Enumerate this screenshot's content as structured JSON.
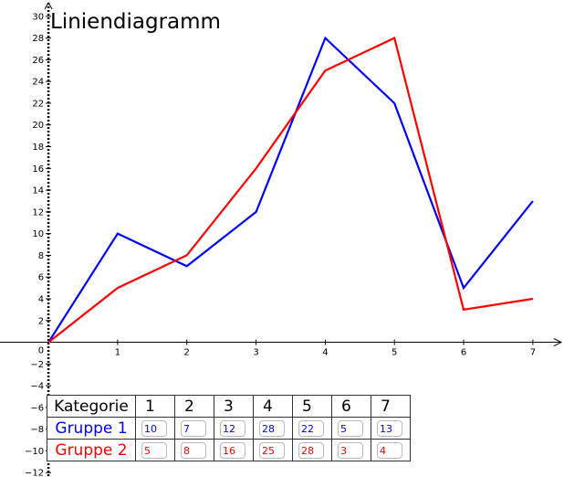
{
  "chart_data": {
    "type": "line",
    "title": "Liniendiagramm",
    "x": [
      0,
      1,
      2,
      3,
      4,
      5,
      6,
      7
    ],
    "xlim": [
      -0.7,
      7.45
    ],
    "ylim": [
      -12.4,
      31.5
    ],
    "x_ticks": [
      "1",
      "2",
      "3",
      "4",
      "5",
      "6",
      "7"
    ],
    "y_ticks": [
      "−12",
      "−10",
      "−8",
      "−6",
      "−4",
      "−2",
      "2",
      "4",
      "6",
      "8",
      "10",
      "12",
      "14",
      "16",
      "18",
      "20",
      "22",
      "24",
      "26",
      "28",
      "30"
    ],
    "origin_label": "0",
    "series": [
      {
        "name": "Gruppe 1",
        "color": "#0000ff",
        "values": [
          0,
          10,
          7,
          12,
          28,
          22,
          5,
          13
        ]
      },
      {
        "name": "Gruppe 2",
        "color": "#ff0000",
        "values": [
          0,
          5,
          8,
          16,
          25,
          28,
          3,
          4
        ]
      }
    ]
  },
  "table": {
    "header_label": "Kategorie",
    "columns": [
      "1",
      "2",
      "3",
      "4",
      "5",
      "6",
      "7"
    ],
    "rows": [
      {
        "label": "Gruppe 1",
        "values": [
          "10",
          "7",
          "12",
          "28",
          "22",
          "5",
          "13"
        ]
      },
      {
        "label": "Gruppe 2",
        "values": [
          "5",
          "8",
          "16",
          "25",
          "28",
          "3",
          "4"
        ]
      }
    ]
  }
}
